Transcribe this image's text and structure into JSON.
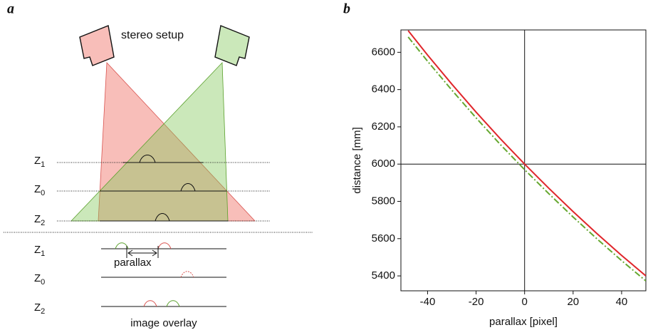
{
  "panel_a": {
    "label": "a",
    "setup_label": "stereo setup",
    "planes": [
      {
        "letter": "Z",
        "sub": "1"
      },
      {
        "letter": "Z",
        "sub": "0"
      },
      {
        "letter": "Z",
        "sub": "2"
      }
    ],
    "overlay_planes": [
      {
        "letter": "Z",
        "sub": "1"
      },
      {
        "letter": "Z",
        "sub": "0"
      },
      {
        "letter": "Z",
        "sub": "2"
      }
    ],
    "parallax_label": "parallax",
    "overlay_label": "image overlay"
  },
  "panel_b": {
    "label": "b"
  },
  "chart_data": {
    "type": "line",
    "xlabel": "parallax [pixel]",
    "ylabel": "distance [mm]",
    "x": [
      -48,
      -40,
      -30,
      -20,
      -10,
      0,
      10,
      20,
      30,
      40,
      50
    ],
    "series": [
      {
        "name": "",
        "color": "#e0262b",
        "values": [
          6716,
          6585,
          6429,
          6279,
          6136,
          6000,
          5870,
          5745,
          5625,
          5510,
          5400
        ]
      },
      {
        "name": "",
        "color": "#66a830",
        "values": [
          6682,
          6552,
          6397,
          6248,
          6105,
          5970,
          5841,
          5716,
          5597,
          5482,
          5373
        ]
      }
    ],
    "xlim": [
      -51,
      50
    ],
    "ylim": [
      5320,
      6720
    ],
    "xticks": [
      -40,
      -20,
      0,
      20,
      40
    ],
    "yticks": [
      5400,
      5600,
      5800,
      6000,
      6200,
      6400,
      6600
    ],
    "reference_lines": {
      "x": 0,
      "y": 6000
    }
  }
}
